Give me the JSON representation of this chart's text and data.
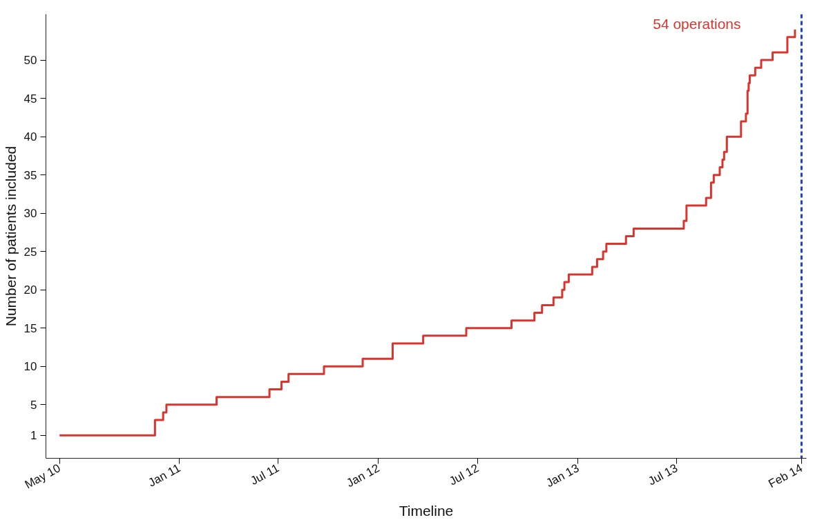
{
  "chart_data": {
    "type": "step",
    "xlabel": "Timeline",
    "ylabel": "Number of patients included",
    "x": [
      "2010-05-26",
      "2010-11-17",
      "2010-12-02",
      "2010-12-08",
      "2011-03-10",
      "2011-06-15",
      "2011-07-07",
      "2011-07-20",
      "2011-09-23",
      "2011-12-03",
      "2012-01-27",
      "2012-03-23",
      "2012-06-10",
      "2012-09-01",
      "2012-10-13",
      "2012-10-27",
      "2012-11-17",
      "2012-12-03",
      "2012-12-07",
      "2012-12-15",
      "2013-01-27",
      "2013-02-05",
      "2013-02-16",
      "2013-02-22",
      "2013-03-30",
      "2013-04-13",
      "2013-07-14",
      "2013-07-19",
      "2013-08-24",
      "2013-09-02",
      "2013-09-07",
      "2013-09-18",
      "2013-09-23",
      "2013-09-26",
      "2013-10-01",
      "2013-10-27",
      "2013-11-05",
      "2013-11-08",
      "2013-11-10",
      "2013-11-12",
      "2013-11-22",
      "2013-12-03",
      "2013-12-24",
      "2014-01-20",
      "2014-02-03"
    ],
    "series": [
      {
        "color": "#d9352e",
        "values": [
          1,
          3,
          4,
          5,
          6,
          7,
          8,
          9,
          10,
          11,
          13,
          14,
          15,
          16,
          17,
          18,
          19,
          20,
          21,
          22,
          23,
          24,
          25,
          26,
          27,
          28,
          29,
          31,
          32,
          34,
          35,
          36,
          37,
          38,
          40,
          42,
          43,
          46,
          47,
          48,
          49,
          50,
          51,
          53,
          54
        ]
      }
    ],
    "xlim": [
      "2010-05-01",
      "2014-02-24"
    ],
    "xticks": [
      {
        "value": "2010-05-26",
        "label": "May 10"
      },
      {
        "value": "2011-01-01",
        "label": "Jan 11"
      },
      {
        "value": "2011-07-01",
        "label": "Jul 11"
      },
      {
        "value": "2012-01-01",
        "label": "Jan 12"
      },
      {
        "value": "2012-07-01",
        "label": "Jul 12"
      },
      {
        "value": "2013-01-01",
        "label": "Jan 13"
      },
      {
        "value": "2013-07-01",
        "label": "Jul 13"
      },
      {
        "value": "2014-02-15",
        "label": "Feb 14"
      }
    ],
    "ylim": [
      -2,
      56
    ],
    "yticks": [
      1,
      5,
      10,
      15,
      20,
      25,
      30,
      35,
      40,
      45,
      50
    ],
    "ref_lines": [
      {
        "axis": "x",
        "value": "2014-02-15",
        "color": "#1a3fd6",
        "line_style": "dashed"
      }
    ],
    "annotations": [
      "54 operations"
    ],
    "grid": false,
    "marker": "none",
    "line_style": "solid"
  }
}
